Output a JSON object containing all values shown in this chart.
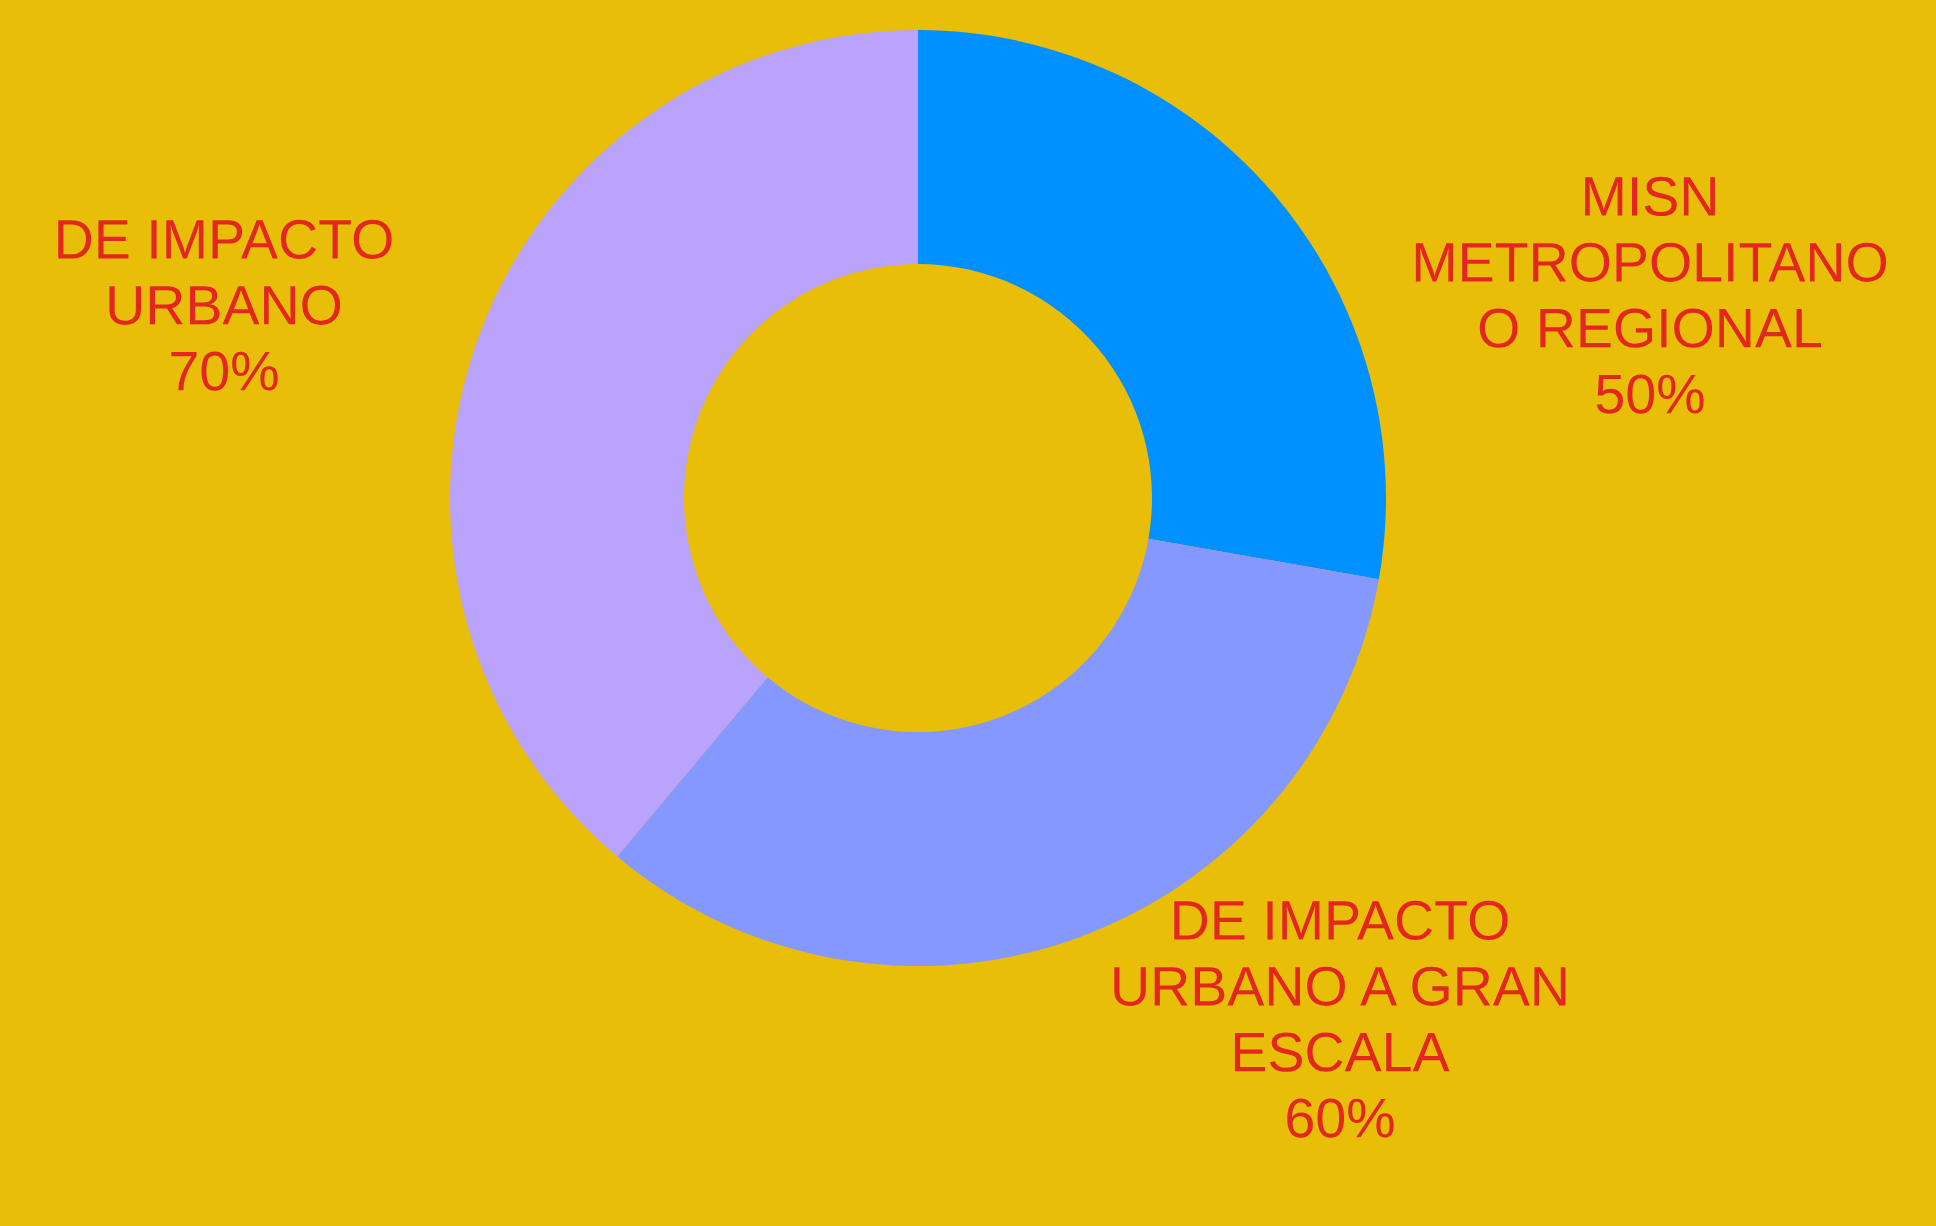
{
  "chart_data": {
    "type": "donut",
    "categories": [
      "MISN\nMETROPOLITANO\nO REGIONAL",
      "DE IMPACTO\nURBANO A GRAN\nESCALA",
      "DE IMPACTO\nURBANO"
    ],
    "values": [
      50,
      60,
      70
    ],
    "colors": [
      "#0090ff",
      "#8498ff",
      "#b9a3fd"
    ],
    "value_labels": [
      "50%",
      "60%",
      "70%"
    ],
    "legend": false
  }
}
